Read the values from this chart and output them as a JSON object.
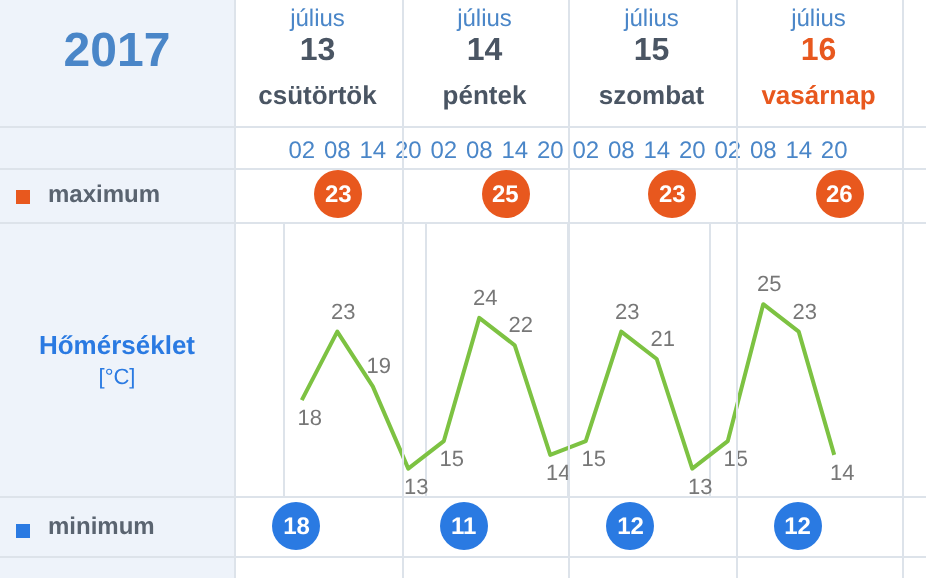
{
  "chart_data": {
    "type": "line",
    "ylabel": "Hőmérséklet [°C]",
    "categories": [
      "02",
      "08",
      "14",
      "20",
      "02",
      "08",
      "14",
      "20",
      "02",
      "08",
      "14",
      "20",
      "02",
      "08",
      "14",
      "20"
    ],
    "values": [
      18,
      23,
      19,
      13,
      15,
      24,
      22,
      14,
      15,
      23,
      21,
      13,
      15,
      25,
      23,
      14
    ],
    "color": "#7dc242",
    "ylim": [
      11,
      31
    ],
    "tick_labels": "x",
    "grid": "x",
    "data_labels": true,
    "annotations": [
      "2017",
      "július",
      "13",
      "csütörtök",
      "július",
      "14",
      "péntek",
      "július",
      "15",
      "szombat",
      "július",
      "16",
      "vasárnap",
      "maximum",
      "23",
      "25",
      "23",
      "26",
      "minimum",
      "18",
      "11",
      "12",
      "12"
    ]
  }
}
